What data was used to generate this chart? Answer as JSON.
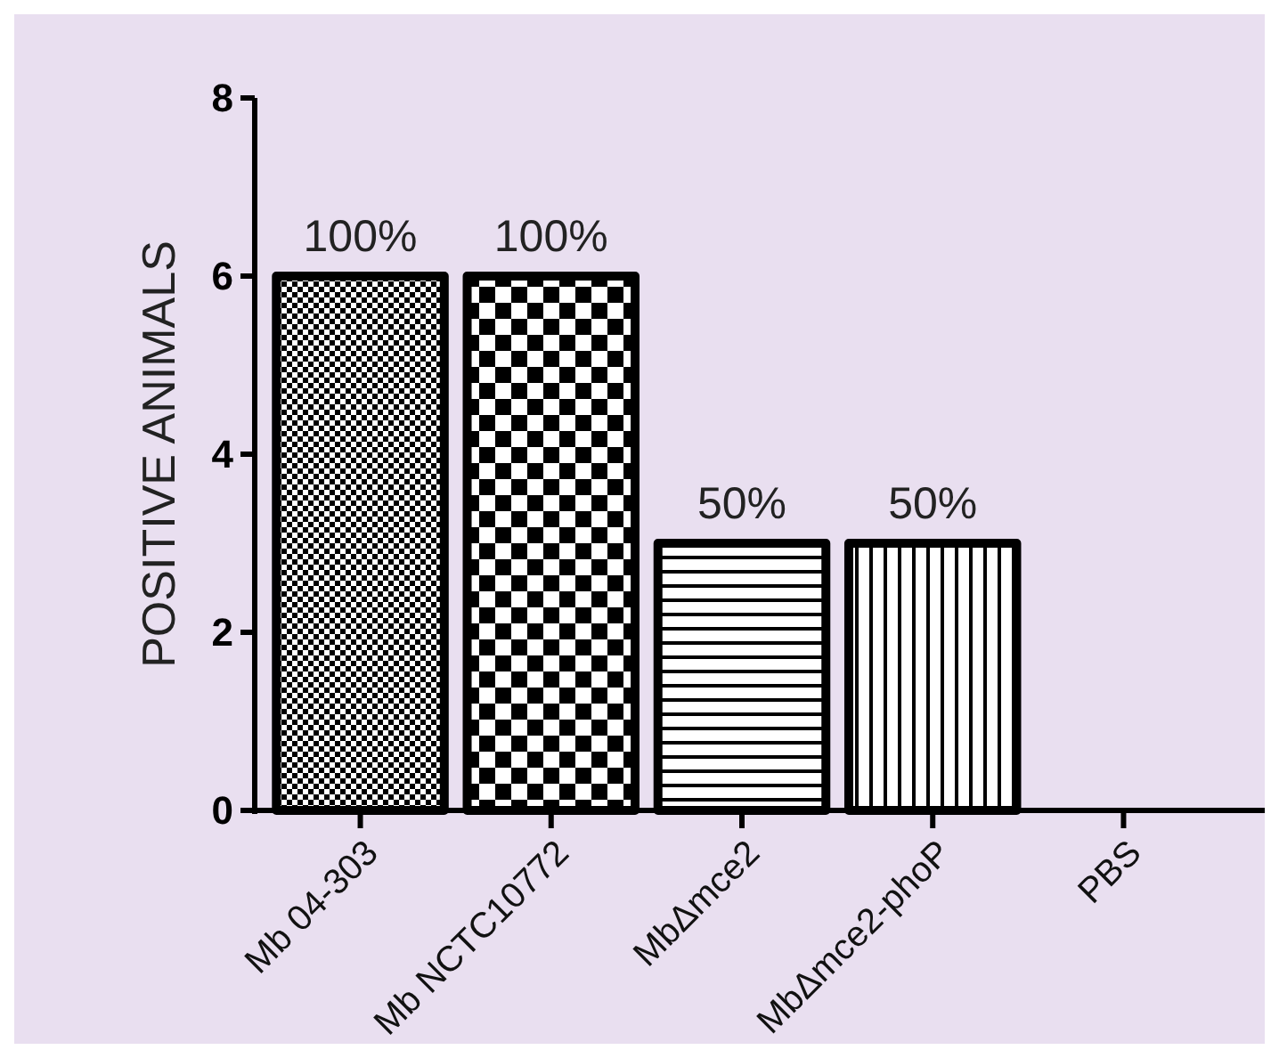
{
  "chart_data": {
    "type": "bar",
    "ylabel": "POSITIVE ANIMALS",
    "categories": [
      "Mb 04-303",
      "Mb NCTC10772",
      "MbΔmce2",
      "MbΔmce2-phoP",
      "PBS"
    ],
    "values": [
      6,
      6,
      3,
      3,
      0
    ],
    "annotations": [
      {
        "text": "100%",
        "x": "Mb 04-303",
        "y": 6
      },
      {
        "text": "100%",
        "x": "Mb NCTC10772",
        "y": 6
      },
      {
        "text": "50%",
        "x": "MbΔmce2",
        "y": 3
      },
      {
        "text": "50%",
        "x": "MbΔmce2-phoP",
        "y": 3
      }
    ],
    "ylim": [
      0,
      8
    ],
    "yticks": [
      0,
      2,
      4,
      6,
      8
    ],
    "grid": false
  }
}
